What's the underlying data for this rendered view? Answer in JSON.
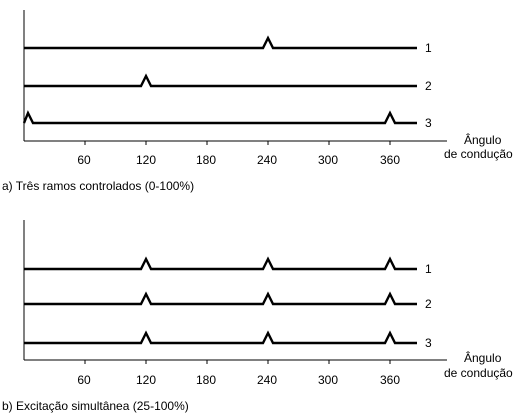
{
  "panels": [
    {
      "id": "a",
      "caption": "a) Três ramos controlados (0-100%)",
      "axis_title_line1": "Ângulo",
      "axis_title_line2": "de condução",
      "x_ticks": [
        "60",
        "120",
        "180",
        "240",
        "300",
        "360"
      ],
      "traces": [
        {
          "label": "1",
          "pulses_deg": [
            240
          ]
        },
        {
          "label": "2",
          "pulses_deg": [
            120
          ]
        },
        {
          "label": "3",
          "pulses_deg": [
            0,
            360
          ]
        }
      ]
    },
    {
      "id": "b",
      "caption": "b) Excitação simultânea  (25-100%)",
      "axis_title_line1": "Ângulo",
      "axis_title_line2": "de condução",
      "x_ticks": [
        "60",
        "120",
        "180",
        "240",
        "300",
        "360"
      ],
      "traces": [
        {
          "label": "1",
          "pulses_deg": [
            120,
            240,
            360
          ]
        },
        {
          "label": "2",
          "pulses_deg": [
            120,
            240,
            360
          ]
        },
        {
          "label": "3",
          "pulses_deg": [
            120,
            240,
            360
          ]
        }
      ]
    }
  ],
  "colors": {
    "line": "#000000",
    "background": "#ffffff"
  }
}
